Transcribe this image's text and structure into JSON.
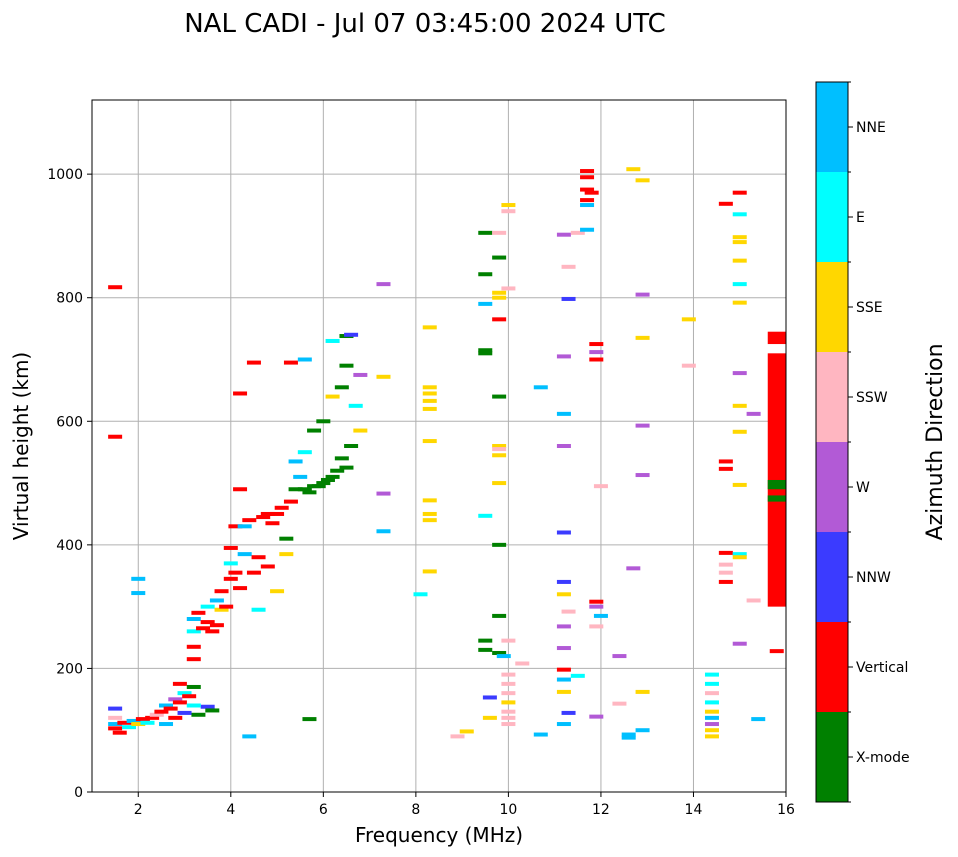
{
  "chart_data": {
    "type": "scatter",
    "title": "NAL CADI - Jul 07 03:45:00 2024 UTC",
    "xlabel": "Frequency (MHz)",
    "ylabel": "Virtual height (km)",
    "xlim": [
      1,
      16
    ],
    "ylim": [
      0,
      1120
    ],
    "xticks": [
      2,
      4,
      6,
      8,
      10,
      12,
      14,
      16
    ],
    "yticks": [
      0,
      200,
      400,
      600,
      800,
      1000
    ],
    "grid": true,
    "colorbar": {
      "label": "Azimuth Direction",
      "categories": [
        {
          "name": "X-mode",
          "color": "#008000"
        },
        {
          "name": "Vertical",
          "color": "#ff0000"
        },
        {
          "name": "NNW",
          "color": "#3b3bff"
        },
        {
          "name": "W",
          "color": "#b25ad6"
        },
        {
          "name": "SSW",
          "color": "#ffb6c1"
        },
        {
          "name": "SSE",
          "color": "#ffd700"
        },
        {
          "name": "E",
          "color": "#00ffff"
        },
        {
          "name": "NNE",
          "color": "#00bfff"
        }
      ]
    },
    "points": [
      {
        "f": 1.5,
        "h": 817,
        "dir": "Vertical"
      },
      {
        "f": 1.5,
        "h": 575,
        "dir": "Vertical"
      },
      {
        "f": 2.0,
        "h": 345,
        "dir": "NNE"
      },
      {
        "f": 2.0,
        "h": 322,
        "dir": "NNE"
      },
      {
        "f": 1.5,
        "h": 135,
        "dir": "NNW"
      },
      {
        "f": 1.5,
        "h": 120,
        "dir": "SSW"
      },
      {
        "f": 1.5,
        "h": 110,
        "dir": "NNE"
      },
      {
        "f": 1.5,
        "h": 103,
        "dir": "Vertical"
      },
      {
        "f": 1.6,
        "h": 96,
        "dir": "Vertical"
      },
      {
        "f": 1.7,
        "h": 112,
        "dir": "Vertical"
      },
      {
        "f": 1.8,
        "h": 105,
        "dir": "E"
      },
      {
        "f": 1.9,
        "h": 115,
        "dir": "NNE"
      },
      {
        "f": 2.0,
        "h": 110,
        "dir": "SSE"
      },
      {
        "f": 2.1,
        "h": 118,
        "dir": "Vertical"
      },
      {
        "f": 2.2,
        "h": 112,
        "dir": "E"
      },
      {
        "f": 2.3,
        "h": 120,
        "dir": "Vertical"
      },
      {
        "f": 2.4,
        "h": 125,
        "dir": "SSW"
      },
      {
        "f": 2.5,
        "h": 130,
        "dir": "Vertical"
      },
      {
        "f": 2.6,
        "h": 140,
        "dir": "NNE"
      },
      {
        "f": 2.7,
        "h": 135,
        "dir": "Vertical"
      },
      {
        "f": 2.8,
        "h": 150,
        "dir": "W"
      },
      {
        "f": 2.9,
        "h": 145,
        "dir": "Vertical"
      },
      {
        "f": 3.0,
        "h": 160,
        "dir": "E"
      },
      {
        "f": 3.1,
        "h": 155,
        "dir": "Vertical"
      },
      {
        "f": 2.9,
        "h": 175,
        "dir": "Vertical"
      },
      {
        "f": 3.2,
        "h": 170,
        "dir": "X-mode"
      },
      {
        "f": 3.3,
        "h": 125,
        "dir": "X-mode"
      },
      {
        "f": 3.5,
        "h": 138,
        "dir": "NNW"
      },
      {
        "f": 3.6,
        "h": 132,
        "dir": "X-mode"
      },
      {
        "f": 2.6,
        "h": 110,
        "dir": "NNE"
      },
      {
        "f": 2.8,
        "h": 120,
        "dir": "Vertical"
      },
      {
        "f": 3.0,
        "h": 128,
        "dir": "NNW"
      },
      {
        "f": 3.2,
        "h": 140,
        "dir": "E"
      },
      {
        "f": 3.2,
        "h": 215,
        "dir": "Vertical"
      },
      {
        "f": 3.2,
        "h": 235,
        "dir": "Vertical"
      },
      {
        "f": 3.2,
        "h": 260,
        "dir": "E"
      },
      {
        "f": 3.2,
        "h": 280,
        "dir": "NNE"
      },
      {
        "f": 3.3,
        "h": 290,
        "dir": "Vertical"
      },
      {
        "f": 3.4,
        "h": 265,
        "dir": "Vertical"
      },
      {
        "f": 3.5,
        "h": 275,
        "dir": "Vertical"
      },
      {
        "f": 3.6,
        "h": 260,
        "dir": "Vertical"
      },
      {
        "f": 3.7,
        "h": 270,
        "dir": "Vertical"
      },
      {
        "f": 3.5,
        "h": 300,
        "dir": "E"
      },
      {
        "f": 3.7,
        "h": 310,
        "dir": "NNE"
      },
      {
        "f": 3.8,
        "h": 325,
        "dir": "Vertical"
      },
      {
        "f": 3.8,
        "h": 295,
        "dir": "SSE"
      },
      {
        "f": 3.9,
        "h": 300,
        "dir": "Vertical"
      },
      {
        "f": 4.0,
        "h": 345,
        "dir": "Vertical"
      },
      {
        "f": 4.0,
        "h": 370,
        "dir": "E"
      },
      {
        "f": 4.0,
        "h": 395,
        "dir": "Vertical"
      },
      {
        "f": 4.1,
        "h": 355,
        "dir": "Vertical"
      },
      {
        "f": 4.2,
        "h": 330,
        "dir": "Vertical"
      },
      {
        "f": 4.3,
        "h": 385,
        "dir": "NNE"
      },
      {
        "f": 4.1,
        "h": 430,
        "dir": "Vertical"
      },
      {
        "f": 4.2,
        "h": 490,
        "dir": "Vertical"
      },
      {
        "f": 4.3,
        "h": 430,
        "dir": "NNE"
      },
      {
        "f": 4.4,
        "h": 440,
        "dir": "Vertical"
      },
      {
        "f": 4.2,
        "h": 645,
        "dir": "Vertical"
      },
      {
        "f": 4.5,
        "h": 695,
        "dir": "Vertical"
      },
      {
        "f": 4.5,
        "h": 355,
        "dir": "Vertical"
      },
      {
        "f": 4.6,
        "h": 295,
        "dir": "E"
      },
      {
        "f": 4.7,
        "h": 445,
        "dir": "Vertical"
      },
      {
        "f": 4.8,
        "h": 450,
        "dir": "Vertical"
      },
      {
        "f": 4.9,
        "h": 435,
        "dir": "Vertical"
      },
      {
        "f": 5.0,
        "h": 450,
        "dir": "Vertical"
      },
      {
        "f": 5.1,
        "h": 460,
        "dir": "Vertical"
      },
      {
        "f": 4.6,
        "h": 380,
        "dir": "Vertical"
      },
      {
        "f": 4.8,
        "h": 365,
        "dir": "Vertical"
      },
      {
        "f": 5.0,
        "h": 325,
        "dir": "SSE"
      },
      {
        "f": 5.2,
        "h": 385,
        "dir": "SSE"
      },
      {
        "f": 5.2,
        "h": 410,
        "dir": "X-mode"
      },
      {
        "f": 5.3,
        "h": 470,
        "dir": "Vertical"
      },
      {
        "f": 5.4,
        "h": 490,
        "dir": "X-mode"
      },
      {
        "f": 5.5,
        "h": 510,
        "dir": "NNE"
      },
      {
        "f": 5.6,
        "h": 490,
        "dir": "X-mode"
      },
      {
        "f": 5.7,
        "h": 485,
        "dir": "X-mode"
      },
      {
        "f": 5.8,
        "h": 495,
        "dir": "X-mode"
      },
      {
        "f": 5.9,
        "h": 495,
        "dir": "X-mode"
      },
      {
        "f": 6.0,
        "h": 500,
        "dir": "X-mode"
      },
      {
        "f": 6.1,
        "h": 505,
        "dir": "X-mode"
      },
      {
        "f": 6.2,
        "h": 510,
        "dir": "X-mode"
      },
      {
        "f": 6.3,
        "h": 520,
        "dir": "X-mode"
      },
      {
        "f": 6.4,
        "h": 540,
        "dir": "X-mode"
      },
      {
        "f": 6.5,
        "h": 525,
        "dir": "X-mode"
      },
      {
        "f": 6.6,
        "h": 560,
        "dir": "X-mode"
      },
      {
        "f": 5.4,
        "h": 535,
        "dir": "NNE"
      },
      {
        "f": 5.6,
        "h": 550,
        "dir": "E"
      },
      {
        "f": 5.8,
        "h": 585,
        "dir": "X-mode"
      },
      {
        "f": 6.0,
        "h": 600,
        "dir": "X-mode"
      },
      {
        "f": 6.2,
        "h": 640,
        "dir": "SSE"
      },
      {
        "f": 6.4,
        "h": 655,
        "dir": "X-mode"
      },
      {
        "f": 6.5,
        "h": 690,
        "dir": "X-mode"
      },
      {
        "f": 6.5,
        "h": 738,
        "dir": "X-mode"
      },
      {
        "f": 6.6,
        "h": 740,
        "dir": "NNW"
      },
      {
        "f": 6.7,
        "h": 625,
        "dir": "E"
      },
      {
        "f": 6.8,
        "h": 585,
        "dir": "SSE"
      },
      {
        "f": 6.8,
        "h": 675,
        "dir": "W"
      },
      {
        "f": 5.3,
        "h": 695,
        "dir": "Vertical"
      },
      {
        "f": 5.6,
        "h": 700,
        "dir": "NNE"
      },
      {
        "f": 6.2,
        "h": 730,
        "dir": "E"
      },
      {
        "f": 4.4,
        "h": 90,
        "dir": "NNE"
      },
      {
        "f": 5.7,
        "h": 118,
        "dir": "X-mode"
      },
      {
        "f": 7.3,
        "h": 822,
        "dir": "W"
      },
      {
        "f": 7.3,
        "h": 672,
        "dir": "SSE"
      },
      {
        "f": 7.3,
        "h": 483,
        "dir": "W"
      },
      {
        "f": 7.3,
        "h": 422,
        "dir": "NNE"
      },
      {
        "f": 8.1,
        "h": 320,
        "dir": "E"
      },
      {
        "f": 8.3,
        "h": 752,
        "dir": "SSE"
      },
      {
        "f": 8.3,
        "h": 655,
        "dir": "SSE"
      },
      {
        "f": 8.3,
        "h": 645,
        "dir": "SSE"
      },
      {
        "f": 8.3,
        "h": 633,
        "dir": "SSE"
      },
      {
        "f": 8.3,
        "h": 620,
        "dir": "SSE"
      },
      {
        "f": 8.3,
        "h": 568,
        "dir": "SSE"
      },
      {
        "f": 8.3,
        "h": 472,
        "dir": "SSE"
      },
      {
        "f": 8.3,
        "h": 450,
        "dir": "SSE"
      },
      {
        "f": 8.3,
        "h": 440,
        "dir": "SSE"
      },
      {
        "f": 8.3,
        "h": 357,
        "dir": "SSE"
      },
      {
        "f": 8.9,
        "h": 90,
        "dir": "SSW"
      },
      {
        "f": 9.1,
        "h": 98,
        "dir": "SSE"
      },
      {
        "f": 9.5,
        "h": 905,
        "dir": "X-mode"
      },
      {
        "f": 9.5,
        "h": 838,
        "dir": "X-mode"
      },
      {
        "f": 9.5,
        "h": 790,
        "dir": "NNE"
      },
      {
        "f": 9.5,
        "h": 715,
        "dir": "X-mode"
      },
      {
        "f": 9.5,
        "h": 710,
        "dir": "X-mode"
      },
      {
        "f": 9.5,
        "h": 447,
        "dir": "E"
      },
      {
        "f": 9.5,
        "h": 245,
        "dir": "X-mode"
      },
      {
        "f": 9.5,
        "h": 230,
        "dir": "X-mode"
      },
      {
        "f": 9.6,
        "h": 153,
        "dir": "NNW"
      },
      {
        "f": 9.6,
        "h": 120,
        "dir": "SSE"
      },
      {
        "f": 9.8,
        "h": 905,
        "dir": "SSW"
      },
      {
        "f": 9.8,
        "h": 865,
        "dir": "X-mode"
      },
      {
        "f": 9.8,
        "h": 808,
        "dir": "SSE"
      },
      {
        "f": 9.8,
        "h": 800,
        "dir": "SSE"
      },
      {
        "f": 9.8,
        "h": 765,
        "dir": "Vertical"
      },
      {
        "f": 9.8,
        "h": 640,
        "dir": "X-mode"
      },
      {
        "f": 9.8,
        "h": 560,
        "dir": "SSE"
      },
      {
        "f": 9.8,
        "h": 555,
        "dir": "SSW"
      },
      {
        "f": 9.8,
        "h": 545,
        "dir": "SSE"
      },
      {
        "f": 9.8,
        "h": 500,
        "dir": "SSE"
      },
      {
        "f": 9.8,
        "h": 400,
        "dir": "X-mode"
      },
      {
        "f": 9.8,
        "h": 285,
        "dir": "X-mode"
      },
      {
        "f": 9.8,
        "h": 225,
        "dir": "X-mode"
      },
      {
        "f": 9.9,
        "h": 220,
        "dir": "NNE"
      },
      {
        "f": 10.0,
        "h": 950,
        "dir": "SSE"
      },
      {
        "f": 10.0,
        "h": 940,
        "dir": "SSW"
      },
      {
        "f": 10.0,
        "h": 815,
        "dir": "SSW"
      },
      {
        "f": 10.0,
        "h": 245,
        "dir": "SSW"
      },
      {
        "f": 10.0,
        "h": 190,
        "dir": "SSW"
      },
      {
        "f": 10.0,
        "h": 175,
        "dir": "SSW"
      },
      {
        "f": 10.0,
        "h": 160,
        "dir": "SSW"
      },
      {
        "f": 10.0,
        "h": 145,
        "dir": "SSE"
      },
      {
        "f": 10.0,
        "h": 130,
        "dir": "SSW"
      },
      {
        "f": 10.0,
        "h": 120,
        "dir": "SSW"
      },
      {
        "f": 10.0,
        "h": 110,
        "dir": "SSW"
      },
      {
        "f": 10.3,
        "h": 208,
        "dir": "SSW"
      },
      {
        "f": 10.7,
        "h": 655,
        "dir": "NNE"
      },
      {
        "f": 10.7,
        "h": 93,
        "dir": "NNE"
      },
      {
        "f": 11.2,
        "h": 902,
        "dir": "W"
      },
      {
        "f": 11.2,
        "h": 705,
        "dir": "W"
      },
      {
        "f": 11.2,
        "h": 612,
        "dir": "NNE"
      },
      {
        "f": 11.2,
        "h": 560,
        "dir": "W"
      },
      {
        "f": 11.2,
        "h": 420,
        "dir": "NNW"
      },
      {
        "f": 11.2,
        "h": 340,
        "dir": "NNW"
      },
      {
        "f": 11.2,
        "h": 320,
        "dir": "SSE"
      },
      {
        "f": 11.2,
        "h": 268,
        "dir": "W"
      },
      {
        "f": 11.2,
        "h": 233,
        "dir": "W"
      },
      {
        "f": 11.2,
        "h": 198,
        "dir": "Vertical"
      },
      {
        "f": 11.2,
        "h": 182,
        "dir": "NNE"
      },
      {
        "f": 11.2,
        "h": 162,
        "dir": "SSE"
      },
      {
        "f": 11.2,
        "h": 110,
        "dir": "NNE"
      },
      {
        "f": 11.3,
        "h": 850,
        "dir": "SSW"
      },
      {
        "f": 11.3,
        "h": 798,
        "dir": "NNW"
      },
      {
        "f": 11.3,
        "h": 292,
        "dir": "SSW"
      },
      {
        "f": 11.3,
        "h": 128,
        "dir": "NNW"
      },
      {
        "f": 11.5,
        "h": 905,
        "dir": "SSW"
      },
      {
        "f": 11.5,
        "h": 188,
        "dir": "E"
      },
      {
        "f": 11.7,
        "h": 1005,
        "dir": "Vertical"
      },
      {
        "f": 11.7,
        "h": 995,
        "dir": "Vertical"
      },
      {
        "f": 11.7,
        "h": 975,
        "dir": "Vertical"
      },
      {
        "f": 11.7,
        "h": 958,
        "dir": "Vertical"
      },
      {
        "f": 11.7,
        "h": 950,
        "dir": "NNE"
      },
      {
        "f": 11.7,
        "h": 910,
        "dir": "NNE"
      },
      {
        "f": 11.8,
        "h": 970,
        "dir": "Vertical"
      },
      {
        "f": 11.9,
        "h": 725,
        "dir": "Vertical"
      },
      {
        "f": 11.9,
        "h": 712,
        "dir": "W"
      },
      {
        "f": 11.9,
        "h": 700,
        "dir": "Vertical"
      },
      {
        "f": 11.9,
        "h": 308,
        "dir": "Vertical"
      },
      {
        "f": 11.9,
        "h": 300,
        "dir": "W"
      },
      {
        "f": 11.9,
        "h": 268,
        "dir": "SSW"
      },
      {
        "f": 11.9,
        "h": 122,
        "dir": "W"
      },
      {
        "f": 12.0,
        "h": 495,
        "dir": "SSW"
      },
      {
        "f": 12.0,
        "h": 285,
        "dir": "NNE"
      },
      {
        "f": 12.4,
        "h": 220,
        "dir": "W"
      },
      {
        "f": 12.4,
        "h": 143,
        "dir": "SSW"
      },
      {
        "f": 12.6,
        "h": 93,
        "dir": "NNE"
      },
      {
        "f": 12.6,
        "h": 88,
        "dir": "NNE"
      },
      {
        "f": 12.7,
        "h": 1008,
        "dir": "SSE"
      },
      {
        "f": 12.7,
        "h": 362,
        "dir": "W"
      },
      {
        "f": 12.9,
        "h": 990,
        "dir": "SSE"
      },
      {
        "f": 12.9,
        "h": 805,
        "dir": "W"
      },
      {
        "f": 12.9,
        "h": 735,
        "dir": "SSE"
      },
      {
        "f": 12.9,
        "h": 593,
        "dir": "W"
      },
      {
        "f": 12.9,
        "h": 513,
        "dir": "W"
      },
      {
        "f": 12.9,
        "h": 162,
        "dir": "SSE"
      },
      {
        "f": 12.9,
        "h": 100,
        "dir": "NNE"
      },
      {
        "f": 13.9,
        "h": 765,
        "dir": "SSE"
      },
      {
        "f": 13.9,
        "h": 690,
        "dir": "SSW"
      },
      {
        "f": 14.4,
        "h": 190,
        "dir": "E"
      },
      {
        "f": 14.4,
        "h": 175,
        "dir": "E"
      },
      {
        "f": 14.4,
        "h": 160,
        "dir": "SSW"
      },
      {
        "f": 14.4,
        "h": 145,
        "dir": "E"
      },
      {
        "f": 14.4,
        "h": 130,
        "dir": "SSE"
      },
      {
        "f": 14.4,
        "h": 120,
        "dir": "NNE"
      },
      {
        "f": 14.4,
        "h": 110,
        "dir": "W"
      },
      {
        "f": 14.4,
        "h": 100,
        "dir": "SSE"
      },
      {
        "f": 14.4,
        "h": 90,
        "dir": "SSE"
      },
      {
        "f": 14.7,
        "h": 952,
        "dir": "Vertical"
      },
      {
        "f": 14.7,
        "h": 535,
        "dir": "Vertical"
      },
      {
        "f": 14.7,
        "h": 523,
        "dir": "Vertical"
      },
      {
        "f": 14.7,
        "h": 387,
        "dir": "Vertical"
      },
      {
        "f": 14.7,
        "h": 368,
        "dir": "SSW"
      },
      {
        "f": 14.7,
        "h": 355,
        "dir": "SSW"
      },
      {
        "f": 14.7,
        "h": 340,
        "dir": "Vertical"
      },
      {
        "f": 15.0,
        "h": 970,
        "dir": "Vertical"
      },
      {
        "f": 15.0,
        "h": 935,
        "dir": "E"
      },
      {
        "f": 15.0,
        "h": 898,
        "dir": "SSE"
      },
      {
        "f": 15.0,
        "h": 890,
        "dir": "SSE"
      },
      {
        "f": 15.0,
        "h": 860,
        "dir": "SSE"
      },
      {
        "f": 15.0,
        "h": 822,
        "dir": "E"
      },
      {
        "f": 15.0,
        "h": 792,
        "dir": "SSE"
      },
      {
        "f": 15.0,
        "h": 678,
        "dir": "W"
      },
      {
        "f": 15.0,
        "h": 625,
        "dir": "SSE"
      },
      {
        "f": 15.0,
        "h": 583,
        "dir": "SSE"
      },
      {
        "f": 15.0,
        "h": 497,
        "dir": "SSE"
      },
      {
        "f": 15.0,
        "h": 385,
        "dir": "E"
      },
      {
        "f": 15.0,
        "h": 380,
        "dir": "SSE"
      },
      {
        "f": 15.0,
        "h": 240,
        "dir": "W"
      },
      {
        "f": 15.3,
        "h": 612,
        "dir": "W"
      },
      {
        "f": 15.3,
        "h": 310,
        "dir": "SSW"
      },
      {
        "f": 15.4,
        "h": 118,
        "dir": "NNE"
      },
      {
        "f": 15.8,
        "h": 228,
        "dir": "Vertical"
      }
    ],
    "bars": [
      {
        "f": 15.8,
        "h0": 300,
        "h1": 710,
        "dir": "Vertical"
      },
      {
        "f": 15.8,
        "h0": 725,
        "h1": 745,
        "dir": "Vertical"
      },
      {
        "f": 15.8,
        "h0": 490,
        "h1": 505,
        "dir": "X-mode"
      },
      {
        "f": 15.8,
        "h0": 470,
        "h1": 480,
        "dir": "X-mode"
      }
    ]
  }
}
